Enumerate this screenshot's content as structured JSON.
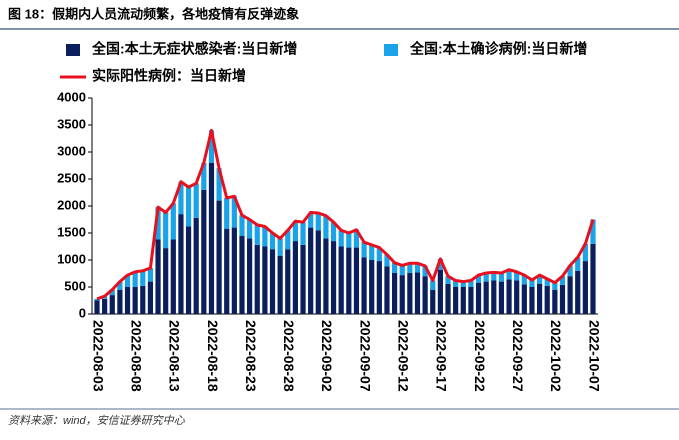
{
  "title": "图 18：假期内人员流动频繁，各地疫情有反弹迹象",
  "source": "资料来源：wind，安信证券研究中心",
  "chart_data": {
    "type": "bar",
    "stacked": true,
    "categories": [
      "2022-08-03",
      null,
      null,
      null,
      null,
      "2022-08-08",
      null,
      null,
      null,
      null,
      "2022-08-13",
      null,
      null,
      null,
      null,
      "2022-08-18",
      null,
      null,
      null,
      null,
      "2022-08-23",
      null,
      null,
      null,
      null,
      "2022-08-28",
      null,
      null,
      null,
      null,
      "2022-09-02",
      null,
      null,
      null,
      null,
      "2022-09-07",
      null,
      null,
      null,
      null,
      "2022-09-12",
      null,
      null,
      null,
      null,
      "2022-09-17",
      null,
      null,
      null,
      null,
      "2022-09-22",
      null,
      null,
      null,
      null,
      "2022-09-27",
      null,
      null,
      null,
      null,
      "2022-10-02",
      null,
      null,
      null,
      null,
      "2022-10-07"
    ],
    "series": [
      {
        "name": "全国:本土无症状感染者:当日新增",
        "color": "#0b1f5c",
        "type": "bar",
        "values": [
          250,
          280,
          350,
          450,
          500,
          500,
          520,
          600,
          1380,
          1220,
          1380,
          1850,
          1620,
          1780,
          2300,
          2800,
          2100,
          1580,
          1600,
          1450,
          1400,
          1280,
          1250,
          1200,
          1080,
          1200,
          1350,
          1280,
          1600,
          1550,
          1400,
          1350,
          1250,
          1230,
          1230,
          1050,
          1000,
          980,
          880,
          760,
          720,
          760,
          770,
          700,
          450,
          820,
          560,
          500,
          500,
          500,
          580,
          600,
          620,
          600,
          640,
          620,
          550,
          500,
          560,
          520,
          450,
          540,
          700,
          800,
          980,
          1300
        ]
      },
      {
        "name": "全国:本土确诊病例:当日新增",
        "color": "#1aa3e8",
        "type": "bar",
        "values": [
          30,
          50,
          100,
          150,
          220,
          280,
          280,
          250,
          600,
          660,
          670,
          600,
          730,
          640,
          500,
          600,
          600,
          570,
          580,
          380,
          350,
          370,
          370,
          300,
          320,
          350,
          370,
          420,
          280,
          320,
          420,
          350,
          300,
          270,
          330,
          280,
          280,
          250,
          220,
          190,
          180,
          180,
          170,
          190,
          170,
          200,
          140,
          120,
          100,
          120,
          140,
          160,
          150,
          160,
          180,
          160,
          170,
          130,
          160,
          130,
          130,
          160,
          200,
          250,
          320,
          450
        ]
      },
      {
        "name": "实际阳性病例：当日新增",
        "color": "#e8101c",
        "type": "line",
        "values": [
          280,
          330,
          450,
          600,
          720,
          780,
          800,
          850,
          1980,
          1880,
          2050,
          2450,
          2350,
          2420,
          2800,
          3400,
          2700,
          2150,
          2180,
          1830,
          1750,
          1650,
          1620,
          1500,
          1400,
          1550,
          1720,
          1700,
          1880,
          1870,
          1820,
          1700,
          1550,
          1500,
          1560,
          1330,
          1280,
          1230,
          1100,
          950,
          900,
          940,
          940,
          890,
          620,
          1020,
          700,
          620,
          600,
          620,
          720,
          760,
          770,
          760,
          820,
          780,
          720,
          630,
          720,
          650,
          580,
          700,
          900,
          1050,
          1300,
          1750
        ]
      }
    ],
    "ylim": [
      0,
      4000
    ],
    "yticks": [
      0,
      500,
      1000,
      1500,
      2000,
      2500,
      3000,
      3500,
      4000
    ],
    "grid": false
  }
}
